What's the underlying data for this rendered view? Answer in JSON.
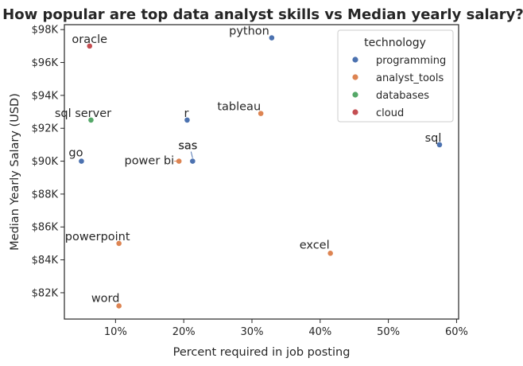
{
  "chart_data": {
    "type": "scatter",
    "title": "How popular are top data analyst skills vs Median yearly salary?",
    "xlabel": "Percent required in job posting",
    "ylabel": "Median Yearly Salary (USD)",
    "xlim": [
      2.5,
      60.3
    ],
    "ylim": [
      80400,
      98300
    ],
    "x_ticks": [
      10,
      20,
      30,
      40,
      50,
      60
    ],
    "x_tick_labels": [
      "10%",
      "20%",
      "30%",
      "40%",
      "50%",
      "60%"
    ],
    "y_ticks": [
      82000,
      84000,
      86000,
      88000,
      90000,
      92000,
      94000,
      96000,
      98000
    ],
    "y_tick_labels": [
      "$82K",
      "$84K",
      "$86K",
      "$88K",
      "$90K",
      "$92K",
      "$94K",
      "$96K",
      "$98K"
    ],
    "grid": false,
    "legend": {
      "title": "technology",
      "placement": "top-right",
      "entries": [
        {
          "name": "programming",
          "color": "#4c72b0"
        },
        {
          "name": "analyst_tools",
          "color": "#dd8452"
        },
        {
          "name": "databases",
          "color": "#55a868"
        },
        {
          "name": "cloud",
          "color": "#c44e52"
        }
      ]
    },
    "points": [
      {
        "label": "python",
        "x": 32.9,
        "y": 97500,
        "group": "programming"
      },
      {
        "label": "oracle",
        "x": 6.2,
        "y": 97000,
        "group": "cloud"
      },
      {
        "label": "tableau",
        "x": 31.3,
        "y": 92900,
        "group": "analyst_tools"
      },
      {
        "label": "r",
        "x": 20.5,
        "y": 92500,
        "group": "programming"
      },
      {
        "label": "sql server",
        "x": 6.4,
        "y": 92500,
        "group": "databases"
      },
      {
        "label": "sql",
        "x": 57.5,
        "y": 91000,
        "group": "programming"
      },
      {
        "label": "sas",
        "x": 21.3,
        "y": 90000,
        "group": "programming"
      },
      {
        "label": "sas",
        "x": 21.3,
        "y": 90000,
        "group": "programming"
      },
      {
        "label": "power bi",
        "x": 19.3,
        "y": 90000,
        "group": "analyst_tools"
      },
      {
        "label": "go",
        "x": 5.0,
        "y": 90000,
        "group": "programming"
      },
      {
        "label": "powerpoint",
        "x": 10.5,
        "y": 85000,
        "group": "analyst_tools"
      },
      {
        "label": "excel",
        "x": 41.5,
        "y": 84400,
        "group": "analyst_tools"
      },
      {
        "label": "word",
        "x": 10.5,
        "y": 81200,
        "group": "analyst_tools"
      }
    ]
  }
}
